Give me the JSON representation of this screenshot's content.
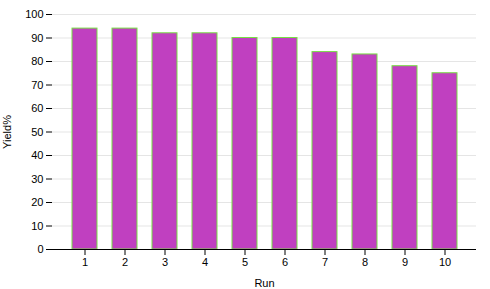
{
  "chart_data": {
    "type": "bar",
    "categories": [
      "1",
      "2",
      "3",
      "4",
      "5",
      "6",
      "7",
      "8",
      "9",
      "10"
    ],
    "values": [
      94,
      94,
      92,
      92,
      90,
      90,
      84,
      83,
      78,
      75
    ],
    "color": "#c040c0",
    "xlabel": "Run",
    "ylabel": "Yield%",
    "ylim": [
      0,
      100
    ],
    "yticks": [
      0,
      10,
      20,
      30,
      40,
      50,
      60,
      70,
      80,
      90,
      100
    ],
    "grid": true
  }
}
